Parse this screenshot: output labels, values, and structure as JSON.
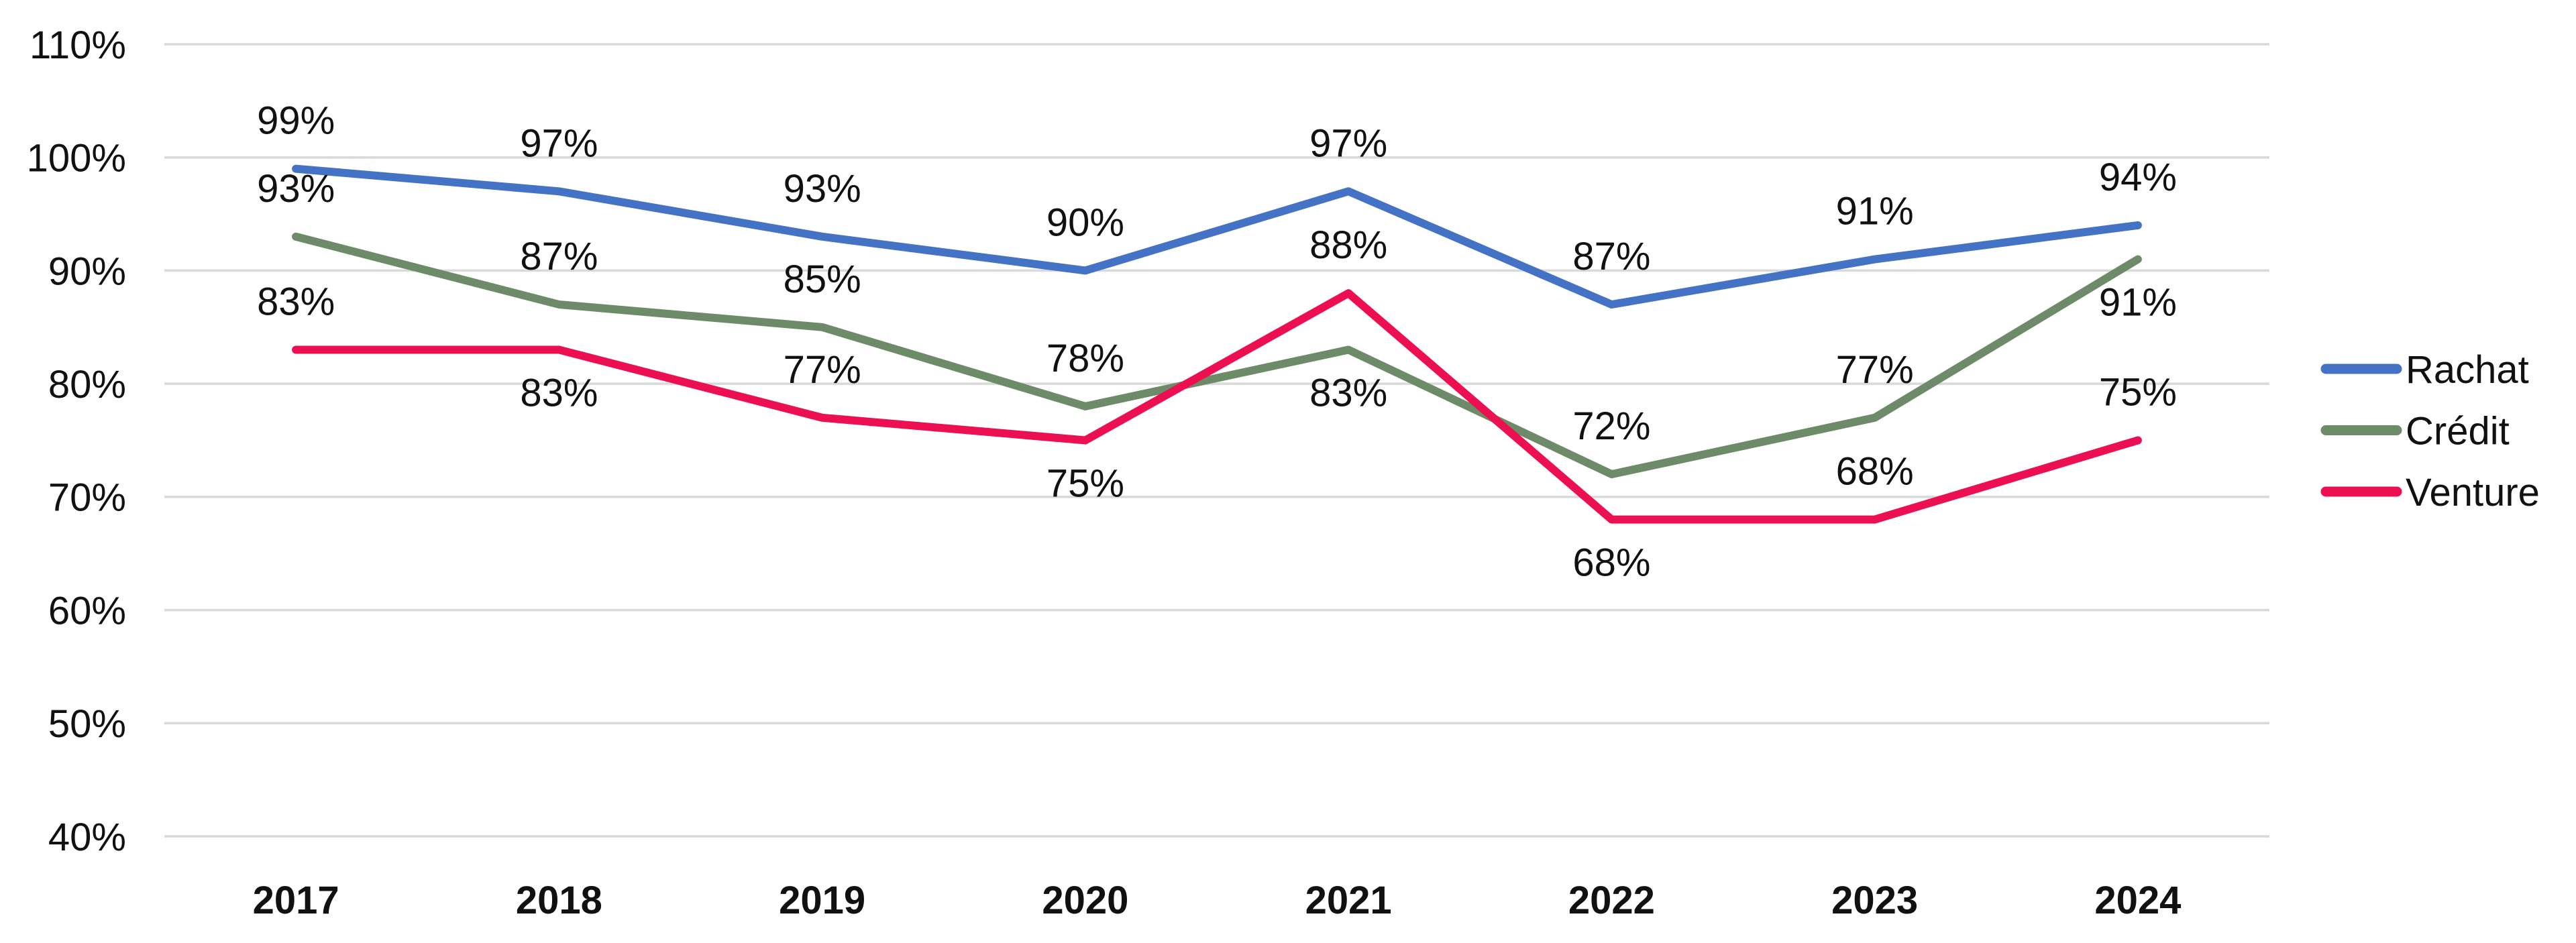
{
  "chart_data": {
    "type": "line",
    "categories": [
      "2017",
      "2018",
      "2019",
      "2020",
      "2021",
      "2022",
      "2023",
      "2024"
    ],
    "series": [
      {
        "name": "Rachat",
        "color": "#4472C4",
        "values": [
          99,
          97,
          93,
          90,
          97,
          87,
          91,
          94
        ],
        "labels": [
          "99%",
          "97%",
          "93%",
          "90%",
          "97%",
          "87%",
          "91%",
          "94%"
        ],
        "label_position": [
          "above",
          "above",
          "above",
          "above",
          "above",
          "above",
          "above",
          "above"
        ]
      },
      {
        "name": "Crédit",
        "color": "#6E8B69",
        "values": [
          93,
          87,
          85,
          78,
          83,
          72,
          77,
          91
        ],
        "labels": [
          "93%",
          "87%",
          "85%",
          "78%",
          "83%",
          "72%",
          "77%",
          "91%"
        ],
        "label_position": [
          "above",
          "above",
          "above",
          "above",
          "below",
          "above",
          "above",
          "below"
        ]
      },
      {
        "name": "Venture",
        "color": "#EC1052",
        "values": [
          83,
          83,
          77,
          75,
          88,
          68,
          68,
          75
        ],
        "labels": [
          "83%",
          "83%",
          "77%",
          "75%",
          "88%",
          "68%",
          "68%",
          "75%"
        ],
        "label_position": [
          "above",
          "below",
          "above",
          "below",
          "above",
          "below",
          "above",
          "above"
        ]
      }
    ],
    "y_axis": {
      "min": 40,
      "max": 110,
      "step": 10,
      "tick_labels": [
        "110%",
        "100%",
        "90%",
        "80%",
        "70%",
        "60%",
        "50%",
        "40%"
      ]
    },
    "x_axis": {
      "tick_labels": [
        "2017",
        "2018",
        "2019",
        "2020",
        "2021",
        "2022",
        "2023",
        "2024"
      ]
    },
    "grid": true,
    "gridline_color": "#D9D9D9",
    "background_color": "#FFFFFF",
    "text_color": "#111111",
    "legend_position": "right",
    "legend_entries": [
      "Rachat",
      "Crédit",
      "Venture"
    ]
  }
}
